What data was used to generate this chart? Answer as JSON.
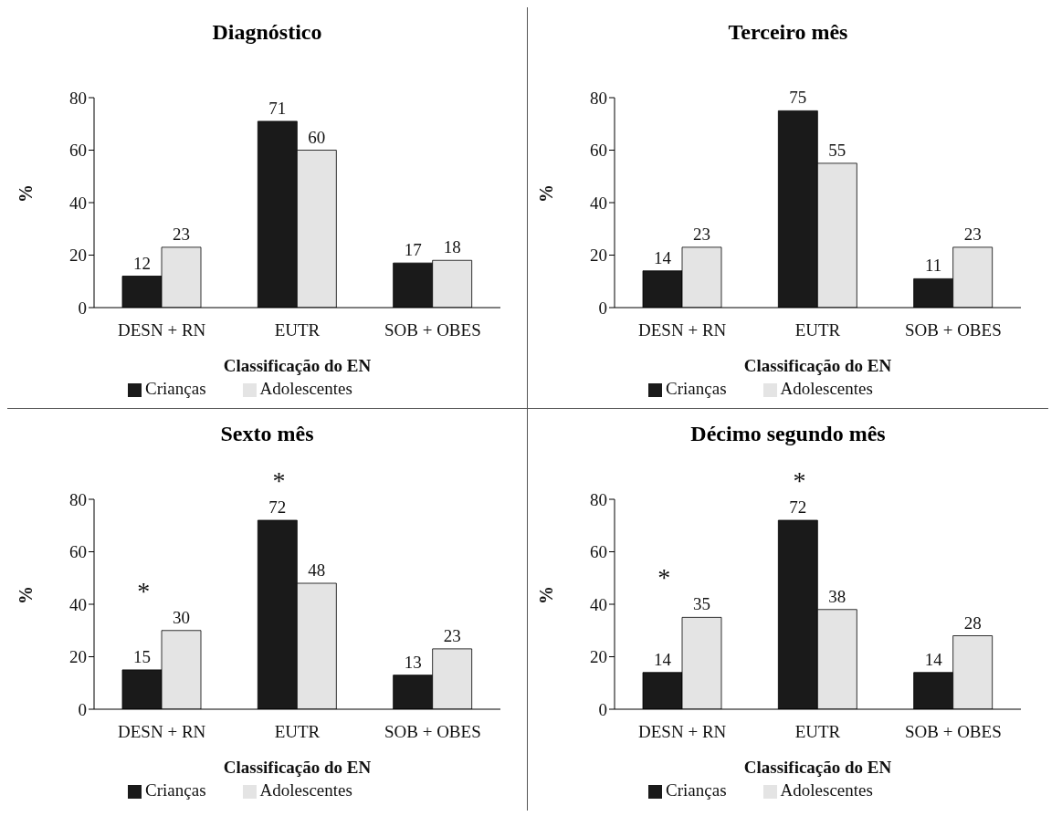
{
  "chart_data": [
    {
      "type": "bar",
      "title": "Diagnóstico",
      "xlabel": "Classificação do EN",
      "ylabel": "%",
      "categories": [
        "DESN + RN",
        "EUTR",
        "SOB + OBES"
      ],
      "series": [
        {
          "name": "Crianças",
          "color": "#1a1a1a",
          "values": [
            12,
            71,
            17
          ]
        },
        {
          "name": "Adolescentes",
          "color": "#e4e4e4",
          "values": [
            23,
            60,
            18
          ]
        }
      ],
      "ylim": [
        0,
        80
      ],
      "yticks": [
        0,
        20,
        40,
        60,
        80
      ],
      "data_labels": true,
      "legend": "bottom",
      "grid": false
    },
    {
      "type": "bar",
      "title": "Terceiro mês",
      "xlabel": "Classificação do EN",
      "ylabel": "%",
      "categories": [
        "DESN + RN",
        "EUTR",
        "SOB + OBES"
      ],
      "series": [
        {
          "name": "Crianças",
          "color": "#1a1a1a",
          "values": [
            14,
            75,
            11
          ]
        },
        {
          "name": "Adolescentes",
          "color": "#e4e4e4",
          "values": [
            23,
            55,
            23
          ]
        }
      ],
      "ylim": [
        0,
        80
      ],
      "yticks": [
        0,
        20,
        40,
        60,
        80
      ],
      "data_labels": true,
      "legend": "bottom",
      "grid": false
    },
    {
      "type": "bar",
      "title": "Sexto mês",
      "xlabel": "Classificação do EN",
      "ylabel": "%",
      "categories": [
        "DESN + RN",
        "EUTR",
        "SOB + OBES"
      ],
      "series": [
        {
          "name": "Crianças",
          "color": "#1a1a1a",
          "values": [
            15,
            72,
            13
          ]
        },
        {
          "name": "Adolescentes",
          "color": "#e4e4e4",
          "values": [
            30,
            48,
            23
          ]
        }
      ],
      "ylim": [
        0,
        80
      ],
      "yticks": [
        0,
        20,
        40,
        60,
        80
      ],
      "data_labels": true,
      "legend": "bottom",
      "grid": false,
      "annotations": [
        "*",
        "*"
      ]
    },
    {
      "type": "bar",
      "title": "Décimo segundo mês",
      "xlabel": "Classificação do EN",
      "ylabel": "%",
      "categories": [
        "DESN + RN",
        "EUTR",
        "SOB + OBES"
      ],
      "series": [
        {
          "name": "Crianças",
          "color": "#1a1a1a",
          "values": [
            14,
            72,
            14
          ]
        },
        {
          "name": "Adolescentes",
          "color": "#e4e4e4",
          "values": [
            35,
            38,
            28
          ]
        }
      ],
      "ylim": [
        0,
        80
      ],
      "yticks": [
        0,
        20,
        40,
        60,
        80
      ],
      "data_labels": true,
      "legend": "bottom",
      "grid": false,
      "annotations": [
        "*",
        "*"
      ]
    }
  ]
}
